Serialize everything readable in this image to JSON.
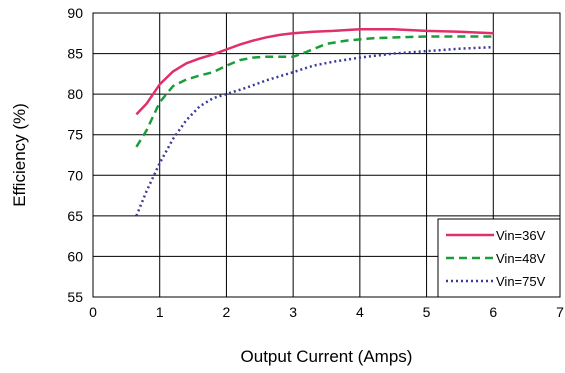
{
  "chart_data": {
    "type": "line",
    "xlabel": "Output Current (Amps)",
    "ylabel": "Efficiency (%)",
    "xlim": [
      0,
      7
    ],
    "ylim": [
      55,
      90
    ],
    "xticks": [
      0,
      1,
      2,
      3,
      4,
      5,
      6,
      7
    ],
    "yticks": [
      55,
      60,
      65,
      70,
      75,
      80,
      85,
      90
    ],
    "grid": true,
    "legend_position": "bottom-right",
    "series": [
      {
        "name": "Vin=36V",
        "color": "#e0306a",
        "dash": "solid",
        "x": [
          0.65,
          0.8,
          1.0,
          1.2,
          1.4,
          1.6,
          1.8,
          2.0,
          2.2,
          2.4,
          2.6,
          2.8,
          3.0,
          3.3,
          3.6,
          4.0,
          4.5,
          5.0,
          5.5,
          6.0
        ],
        "y": [
          77.5,
          78.8,
          81.2,
          82.8,
          83.8,
          84.4,
          84.9,
          85.5,
          86.1,
          86.6,
          87.0,
          87.3,
          87.5,
          87.7,
          87.8,
          88.0,
          88.0,
          87.8,
          87.7,
          87.5
        ]
      },
      {
        "name": "Vin=48V",
        "color": "#1a9e3a",
        "dash": "dashed",
        "x": [
          0.65,
          0.8,
          1.0,
          1.2,
          1.4,
          1.6,
          1.8,
          2.0,
          2.2,
          2.4,
          2.6,
          2.8,
          3.0,
          3.2,
          3.5,
          3.8,
          4.2,
          4.6,
          5.0,
          5.5,
          6.0
        ],
        "y": [
          73.5,
          75.5,
          79.0,
          81.0,
          81.8,
          82.3,
          82.7,
          83.5,
          84.2,
          84.5,
          84.6,
          84.6,
          84.6,
          85.2,
          86.2,
          86.6,
          86.9,
          87.0,
          87.1,
          87.1,
          87.1
        ]
      },
      {
        "name": "Vin=75V",
        "color": "#3a3a9a",
        "dash": "dotted",
        "x": [
          0.65,
          0.8,
          1.0,
          1.2,
          1.4,
          1.6,
          1.8,
          2.0,
          2.3,
          2.6,
          3.0,
          3.3,
          3.6,
          4.0,
          4.5,
          5.0,
          5.5,
          6.0
        ],
        "y": [
          65.0,
          68.0,
          71.5,
          74.5,
          76.8,
          78.5,
          79.5,
          80.0,
          80.8,
          81.7,
          82.7,
          83.5,
          84.0,
          84.5,
          85.0,
          85.3,
          85.6,
          85.8
        ]
      }
    ]
  }
}
